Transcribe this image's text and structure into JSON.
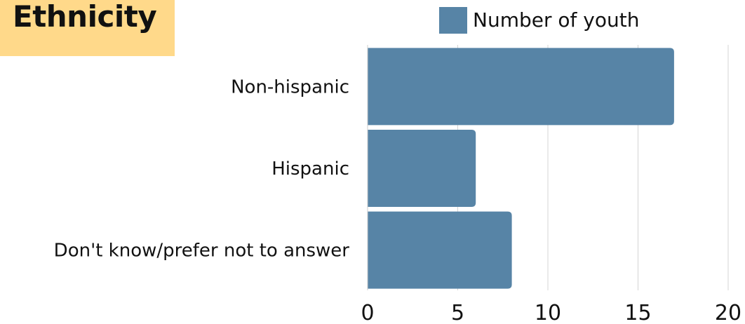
{
  "page_title": "Ethnicity",
  "colors": {
    "title_background": "#ffd98a",
    "bar": "#5784a6",
    "grid": "#d4d4d4",
    "text": "#111111"
  },
  "chart_data": {
    "type": "bar",
    "orientation": "horizontal",
    "title": "Ethnicity",
    "categories": [
      "Non-hispanic",
      "Hispanic",
      "Don't know/prefer not to answer"
    ],
    "series": [
      {
        "name": "Number of youth",
        "values": [
          17,
          6,
          8
        ]
      }
    ],
    "x_ticks": [
      "0",
      "5",
      "10",
      "15",
      "20"
    ],
    "xlim": [
      0,
      20
    ],
    "xlabel": "",
    "ylabel": "",
    "grid": "vertical",
    "legend": "top-right"
  }
}
